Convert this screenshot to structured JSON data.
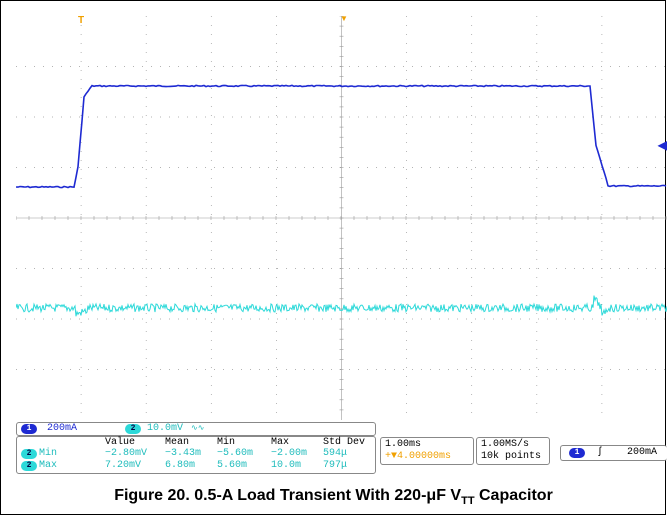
{
  "channel_bar": {
    "ch1_badge": "1",
    "ch1_scale": "200mA",
    "ch2_badge": "2",
    "ch2_scale": "10.0mV",
    "ch2_coupling": "∿∿"
  },
  "measurements": {
    "headers": [
      "Value",
      "Mean",
      "Min",
      "Max",
      "Std Dev"
    ],
    "rows": [
      {
        "badge": "2",
        "name": "Min",
        "values": [
          "−2.80mV",
          "−3.43m",
          "−5.60m",
          "−2.00m",
          "594μ"
        ]
      },
      {
        "badge": "2",
        "name": "Max",
        "values": [
          "7.20mV",
          "6.80m",
          "5.60m",
          "10.0m",
          "797μ"
        ]
      }
    ]
  },
  "timebase": {
    "scale": "1.00ms",
    "trigger_pos": "+▼4.00000ms"
  },
  "acquisition": {
    "rate": "1.00MS/s",
    "points": "10k points"
  },
  "trigger": {
    "badge": "1",
    "slope": "ʃ",
    "level": "200mA"
  },
  "caption": {
    "prefix": "Figure 20. 0.5-A Load Transient With 220-μF V",
    "subscript": "TT",
    "suffix": " Capacitor"
  },
  "colors": {
    "ch1": "#1e2ad2",
    "ch2": "#2cd9d9",
    "trigger_marker": "#f0a000",
    "grid": "#9a9a9a"
  },
  "markers": {
    "trigger_top": "T",
    "level_arrow": "◀",
    "trigger_arrow": "▼"
  }
}
